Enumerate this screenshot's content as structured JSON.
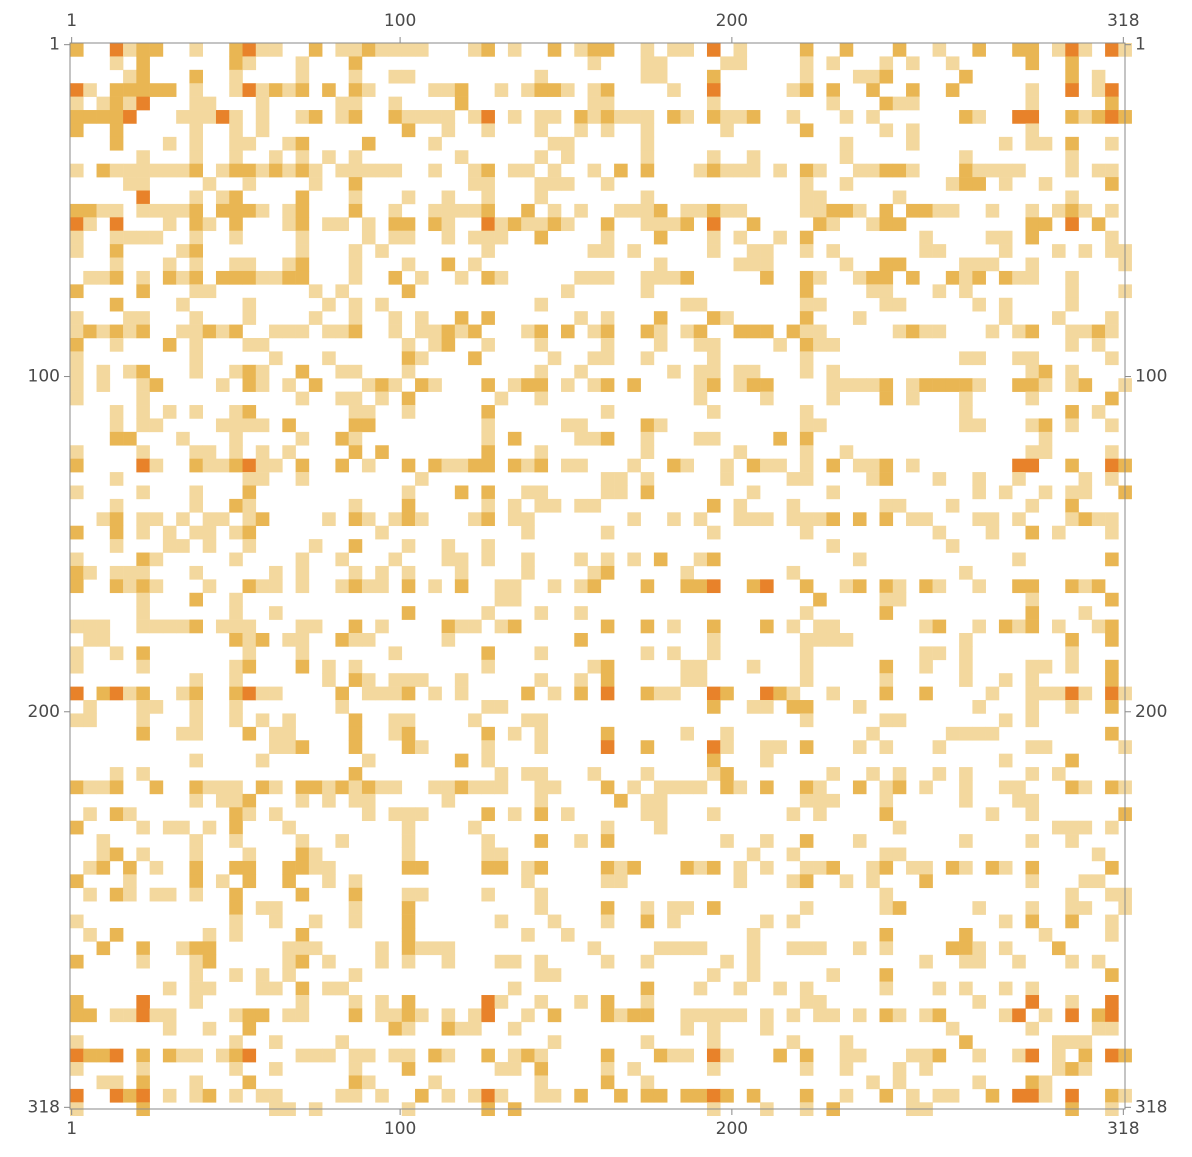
{
  "chart_data": {
    "type": "heatmap",
    "title": "",
    "xlabel": "",
    "ylabel": "",
    "rows": 318,
    "cols": 318,
    "block_size": 4,
    "symmetric": true,
    "frame": "all four sides",
    "x_ticks": [
      "1",
      "100",
      "200",
      "318"
    ],
    "y_ticks": [
      "1",
      "100",
      "200",
      "318"
    ],
    "colors": {
      "empty": "#ffffff",
      "light": "#f3d89e",
      "medium": "#e9b653",
      "dark": "#e8822a"
    },
    "dark_blocks": [
      [
        1,
        16
      ],
      [
        1,
        55
      ],
      [
        1,
        196
      ],
      [
        1,
        301
      ],
      [
        1,
        313
      ],
      [
        16,
        1
      ],
      [
        16,
        55
      ],
      [
        16,
        196
      ],
      [
        16,
        301
      ],
      [
        21,
        48
      ],
      [
        21,
        126
      ],
      [
        21,
        290
      ],
      [
        21,
        316
      ],
      [
        24,
        17
      ],
      [
        24,
        316
      ],
      [
        55,
        1
      ],
      [
        55,
        16
      ],
      [
        55,
        126
      ],
      [
        55,
        196
      ],
      [
        55,
        301
      ],
      [
        126,
        21
      ],
      [
        126,
        55
      ],
      [
        126,
        290
      ],
      [
        126,
        316
      ],
      [
        164,
        196
      ],
      [
        164,
        209
      ],
      [
        196,
        1
      ],
      [
        196,
        16
      ],
      [
        196,
        55
      ],
      [
        196,
        196
      ],
      [
        196,
        301
      ],
      [
        209,
        164
      ],
      [
        209,
        196
      ],
      [
        286,
        21
      ],
      [
        286,
        126
      ],
      [
        286,
        290
      ],
      [
        286,
        316
      ],
      [
        301,
        1
      ],
      [
        301,
        16
      ],
      [
        301,
        55
      ],
      [
        301,
        196
      ],
      [
        301,
        290
      ],
      [
        313,
        1
      ],
      [
        313,
        16
      ],
      [
        313,
        196
      ],
      [
        313,
        301
      ],
      [
        316,
        21
      ],
      [
        316,
        126
      ],
      [
        316,
        286
      ],
      [
        316,
        290
      ]
    ],
    "medium_lines": [
      4,
      16,
      23,
      40,
      49,
      55,
      72,
      86,
      101,
      126,
      141,
      164,
      175,
      196,
      222,
      246,
      271,
      290,
      301,
      313
    ],
    "light_density": 0.16
  }
}
